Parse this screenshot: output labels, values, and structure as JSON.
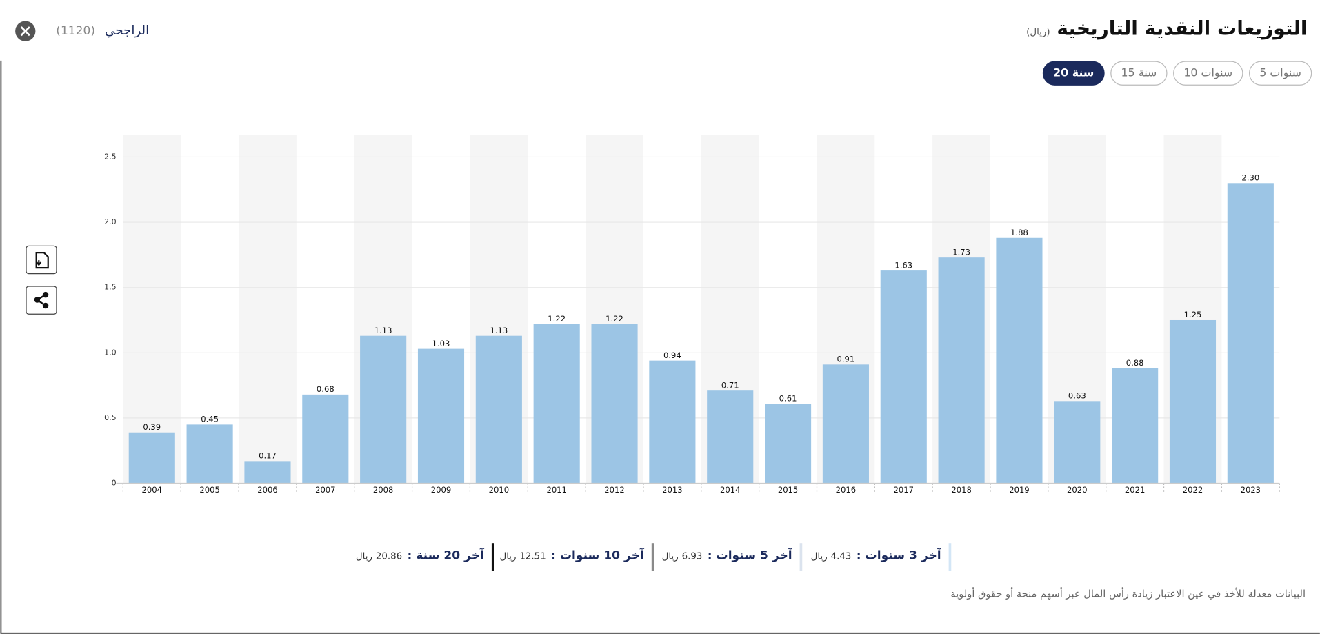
{
  "header": {
    "title": "التوزيعات النقدية التاريخية",
    "unit": "(ريال)",
    "company": "الراجحي",
    "code": "(1120)"
  },
  "tabs": [
    "5 سنوات",
    "10 سنوات",
    "15 سنة",
    "20 سنة"
  ],
  "active_tab": 3,
  "chart_data": {
    "type": "bar",
    "categories": [
      "2004",
      "2005",
      "2006",
      "2007",
      "2008",
      "2009",
      "2010",
      "2011",
      "2012",
      "2013",
      "2014",
      "2015",
      "2016",
      "2017",
      "2018",
      "2019",
      "2020",
      "2021",
      "2022",
      "2023"
    ],
    "values": [
      0.39,
      0.45,
      0.17,
      0.68,
      1.13,
      1.03,
      1.13,
      1.22,
      1.22,
      0.94,
      0.71,
      0.61,
      0.91,
      1.63,
      1.73,
      1.88,
      0.63,
      0.88,
      1.25,
      2.3
    ],
    "value_labels": [
      "0.39",
      "0.45",
      "0.17",
      "0.68",
      "1.13",
      "1.03",
      "1.13",
      "1.22",
      "1.22",
      "0.94",
      "0.71",
      "0.61",
      "0.91",
      "1.63",
      "1.73",
      "1.88",
      "0.63",
      "0.88",
      "1.25",
      "2.30"
    ],
    "color": "#9cc5e5",
    "ylim": [
      0,
      2.67
    ],
    "yticks": [
      0,
      0.5,
      {
        "value": 1,
        "label": "1.0"
      },
      1.5,
      {
        "value": 2,
        "label": "2.0"
      },
      2.5
    ],
    "grid": true
  },
  "summary": [
    {
      "label": "آخر 3 سنوات :",
      "value": "4.43",
      "unit": "ريال",
      "color": "#d3e6f6"
    },
    {
      "label": "آخر 5 سنوات :",
      "value": "6.93",
      "unit": "ريال",
      "color": "#dbe3ee"
    },
    {
      "label": "آخر 10 سنوات :",
      "value": "12.51",
      "unit": "ريال",
      "color": "#8a8a8a"
    },
    {
      "label": "آخر 20 سنة :",
      "value": "20.86",
      "unit": "ريال",
      "color": "#111111"
    }
  ],
  "footnote": "البيانات معدلة للأخذ في عين الاعتبار زيادة رأس المال عبر أسهم منحة أو حقوق أولوية"
}
